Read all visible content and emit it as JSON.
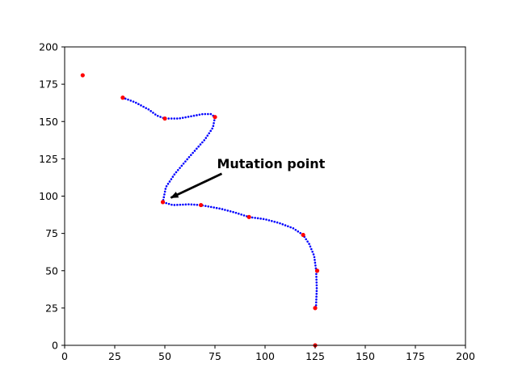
{
  "chart_data": {
    "type": "scatter",
    "title": "",
    "xlabel": "",
    "ylabel": "",
    "xlim": [
      0,
      200
    ],
    "ylim": [
      0,
      200
    ],
    "xticks": [
      0,
      25,
      50,
      75,
      100,
      125,
      150,
      175,
      200
    ],
    "yticks": [
      0,
      25,
      50,
      75,
      100,
      125,
      150,
      175,
      200
    ],
    "grid": false,
    "series": [
      {
        "color": "#ff0000",
        "marker": "circle-large",
        "points": [
          [
            9,
            181
          ],
          [
            29,
            166
          ],
          [
            50,
            152
          ],
          [
            75,
            153
          ],
          [
            49,
            96
          ],
          [
            68,
            94
          ],
          [
            92,
            86
          ],
          [
            119,
            74
          ],
          [
            126,
            50
          ],
          [
            125,
            25
          ],
          [
            125,
            0
          ]
        ]
      },
      {
        "color": "#0000ff",
        "marker": "circle-small",
        "curve": [
          [
            29,
            166
          ],
          [
            35,
            163
          ],
          [
            42,
            158
          ],
          [
            46,
            154
          ],
          [
            50,
            152
          ],
          [
            57,
            152
          ],
          [
            63,
            153.5
          ],
          [
            69,
            155
          ],
          [
            73,
            155
          ],
          [
            75,
            153
          ],
          [
            74,
            146
          ],
          [
            70,
            138
          ],
          [
            62,
            126
          ],
          [
            55,
            115
          ],
          [
            50.5,
            106
          ],
          [
            49,
            96
          ],
          [
            54,
            94
          ],
          [
            62,
            94.5
          ],
          [
            68,
            94
          ],
          [
            78,
            91.5
          ],
          [
            85,
            89
          ],
          [
            92,
            86
          ],
          [
            100,
            84.5
          ],
          [
            107,
            82
          ],
          [
            114,
            78.5
          ],
          [
            119,
            74
          ],
          [
            122,
            68
          ],
          [
            124.5,
            60
          ],
          [
            125.5,
            50
          ],
          [
            125.8,
            38
          ],
          [
            125.4,
            25
          ]
        ],
        "count": 150
      }
    ],
    "annotation": {
      "text": "Mutation point",
      "xy": [
        53,
        100
      ],
      "xytext": [
        78,
        121
      ]
    }
  }
}
